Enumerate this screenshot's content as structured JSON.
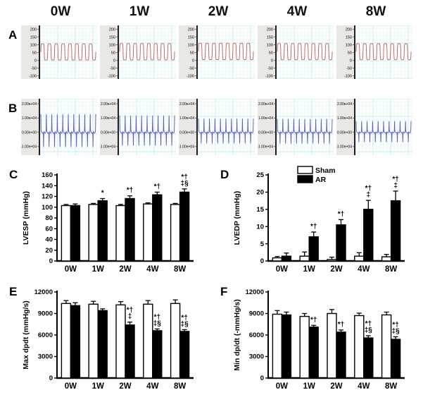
{
  "figure": {
    "week_labels": [
      "0W",
      "1W",
      "2W",
      "4W",
      "8W"
    ],
    "panel_letters": [
      "A",
      "B",
      "C",
      "D",
      "E",
      "F"
    ]
  },
  "colors": {
    "pressure_trace": "#cc5f58",
    "dpdt_trace": "#5a5ac8",
    "grid_minor": "#daf3f5",
    "grid_major": "#bfeaee",
    "strip_bg": "#eae8e5",
    "axis": "#222222",
    "bar_white": "#ffffff",
    "bar_black": "#000000"
  },
  "legend": {
    "items": [
      {
        "label": "Sham",
        "fill": "#ffffff"
      },
      {
        "label": "AR",
        "fill": "#000000"
      }
    ]
  },
  "traces": {
    "A": {
      "kind": "pressure",
      "ytick_values": [
        200,
        150,
        100,
        50,
        0,
        -50,
        -100
      ],
      "ytick_labels": [
        "200",
        "150",
        "100",
        "50",
        "0",
        "-50",
        "-100"
      ],
      "ymin": -120,
      "ymax": 225,
      "cycles": 8,
      "height": 76,
      "waves": [
        {
          "high": 106,
          "low": 2
        },
        {
          "high": 108,
          "low": 3
        },
        {
          "high": 110,
          "low": 5
        },
        {
          "high": 108,
          "low": 4
        },
        {
          "high": 107,
          "low": 4
        }
      ]
    },
    "B": {
      "kind": "dpdt",
      "ytick_values": [
        20000,
        10000,
        0,
        -10000
      ],
      "ytick_labels": [
        "2.00e+04",
        "1.00e+04",
        "0.00e+00",
        "-1.00e+04"
      ],
      "ymin": -16000,
      "ymax": 23500,
      "cycles": 10,
      "height": 80,
      "waves": [
        {
          "up": 12300,
          "down": -10800
        },
        {
          "up": 11300,
          "down": -9800
        },
        {
          "up": 9200,
          "down": -8200
        },
        {
          "up": 9000,
          "down": -8300
        },
        {
          "up": 7600,
          "down": -7200
        }
      ]
    }
  },
  "chart_data": [
    {
      "id": "C",
      "type": "bar",
      "ylabel": "LVESP (mmHg)",
      "xlabel": "",
      "categories": [
        "0W",
        "1W",
        "2W",
        "4W",
        "8W"
      ],
      "ylim": [
        0,
        160
      ],
      "ytick_step": 20,
      "legend": false,
      "series": [
        {
          "name": "Sham",
          "fill": "#ffffff",
          "values": [
            103,
            105,
            103,
            106,
            105
          ],
          "errors": [
            2,
            2,
            2,
            2,
            2
          ]
        },
        {
          "name": "AR",
          "fill": "#000000",
          "values": [
            103,
            112,
            116,
            123,
            128
          ],
          "errors": [
            3,
            4,
            5,
            5,
            6
          ]
        }
      ],
      "annotations": [
        [],
        [
          "*"
        ],
        [
          "*†"
        ],
        [
          "*†"
        ],
        [
          "*†",
          "‡§"
        ]
      ]
    },
    {
      "id": "D",
      "type": "bar",
      "ylabel": "LVEDP (mmHg)",
      "xlabel": "",
      "categories": [
        "0W",
        "1W",
        "2W",
        "4W",
        "8W"
      ],
      "ylim": [
        0,
        25
      ],
      "ytick_step": 5,
      "legend": true,
      "series": [
        {
          "name": "Sham",
          "fill": "#ffffff",
          "values": [
            0.9,
            1.4,
            0.4,
            1.4,
            1.2
          ],
          "errors": [
            0.4,
            1.2,
            0.7,
            1.0,
            0.7
          ]
        },
        {
          "name": "AR",
          "fill": "#000000",
          "values": [
            1.4,
            7.0,
            10.5,
            15.0,
            17.5
          ],
          "errors": [
            0.9,
            1.4,
            1.5,
            2.6,
            2.8
          ]
        }
      ],
      "annotations": [
        [],
        [
          "*†"
        ],
        [
          "*†"
        ],
        [
          "*†",
          "‡"
        ],
        [
          "*†",
          "‡"
        ]
      ]
    },
    {
      "id": "E",
      "type": "bar",
      "ylabel": "Max dpdt (mmHg/s)",
      "xlabel": "",
      "categories": [
        "0W",
        "1W",
        "2W",
        "4W",
        "8W"
      ],
      "ylim": [
        0,
        12000
      ],
      "ytick_step": 3000,
      "legend": false,
      "series": [
        {
          "name": "Sham",
          "fill": "#ffffff",
          "values": [
            10400,
            10300,
            10200,
            10300,
            10400
          ],
          "errors": [
            400,
            400,
            450,
            500,
            500
          ]
        },
        {
          "name": "AR",
          "fill": "#000000",
          "values": [
            10100,
            9400,
            7400,
            6600,
            6500
          ],
          "errors": [
            400,
            250,
            400,
            250,
            250
          ]
        }
      ],
      "annotations": [
        [],
        [],
        [
          "*†",
          "‡"
        ],
        [
          "*†",
          "‡§"
        ],
        [
          "*†",
          "‡§"
        ]
      ]
    },
    {
      "id": "F",
      "type": "bar",
      "ylabel": "Min dp/dt (-mmHg/s)",
      "xlabel": "",
      "categories": [
        "0W",
        "1W",
        "2W",
        "4W",
        "8W"
      ],
      "ylim": [
        0,
        12000
      ],
      "ytick_step": 3000,
      "legend": false,
      "series": [
        {
          "name": "Sham",
          "fill": "#ffffff",
          "values": [
            8900,
            8600,
            9000,
            8700,
            8800
          ],
          "errors": [
            500,
            400,
            550,
            350,
            400
          ]
        },
        {
          "name": "AR",
          "fill": "#000000",
          "values": [
            8800,
            7100,
            6400,
            5600,
            5400
          ],
          "errors": [
            400,
            250,
            300,
            300,
            350
          ]
        }
      ],
      "annotations": [
        [],
        [
          "*†"
        ],
        [
          "*†"
        ],
        [
          "*†",
          "‡§"
        ],
        [
          "*†",
          "‡§"
        ]
      ]
    }
  ]
}
